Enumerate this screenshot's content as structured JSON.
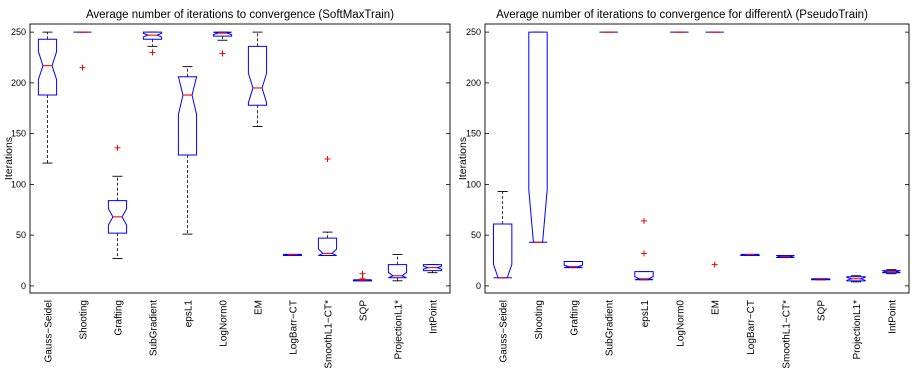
{
  "chart_data": [
    {
      "type": "box",
      "title": "Average number of iterations to convergence (SoftMaxTrain)",
      "xlabel": "",
      "ylabel": "Iterations",
      "ylim": [
        -7,
        258
      ],
      "yticks": [
        0,
        50,
        100,
        150,
        200,
        250
      ],
      "grid": false,
      "notched": true,
      "colors": {
        "box": "#0000ff",
        "median": "#ff0000",
        "whisker": "#000000",
        "outlier": "#ff0000"
      },
      "categories": [
        "Gauss−Seidel",
        "Shooting",
        "Grafting",
        "SubGradient",
        "epsL1",
        "LogNorm0",
        "EM",
        "LogBarr−CT",
        "SmoothL1−CT*",
        "SQP",
        "ProjectionL1*",
        "IntPoint"
      ],
      "boxes": [
        {
          "q1": 188,
          "median": 217,
          "q3": 243,
          "whisker_low": 121,
          "whisker_high": 250,
          "outliers": []
        },
        {
          "q1": 250,
          "median": 250,
          "q3": 250,
          "whisker_low": 250,
          "whisker_high": 250,
          "outliers": [
            215
          ]
        },
        {
          "q1": 52,
          "median": 68,
          "q3": 84,
          "whisker_low": 27,
          "whisker_high": 108,
          "outliers": [
            136
          ]
        },
        {
          "q1": 243,
          "median": 247,
          "q3": 250,
          "whisker_low": 236,
          "whisker_high": 250,
          "outliers": [
            230
          ]
        },
        {
          "q1": 129,
          "median": 188,
          "q3": 206,
          "whisker_low": 51,
          "whisker_high": 216,
          "outliers": []
        },
        {
          "q1": 246,
          "median": 249,
          "q3": 250,
          "whisker_low": 242,
          "whisker_high": 250,
          "outliers": [
            229
          ]
        },
        {
          "q1": 178,
          "median": 195,
          "q3": 236,
          "whisker_low": 157,
          "whisker_high": 250,
          "outliers": []
        },
        {
          "q1": 30,
          "median": 31,
          "q3": 31,
          "whisker_low": 30,
          "whisker_high": 31,
          "outliers": []
        },
        {
          "q1": 30,
          "median": 32,
          "q3": 47,
          "whisker_low": 30,
          "whisker_high": 53,
          "outliers": [
            125
          ]
        },
        {
          "q1": 5,
          "median": 6,
          "q3": 6,
          "whisker_low": 5,
          "whisker_high": 6,
          "outliers": [
            12,
            7
          ]
        },
        {
          "q1": 8,
          "median": 10,
          "q3": 21,
          "whisker_low": 5,
          "whisker_high": 31,
          "outliers": []
        },
        {
          "q1": 15,
          "median": 18,
          "q3": 21,
          "whisker_low": 13,
          "whisker_high": 21,
          "outliers": []
        }
      ]
    },
    {
      "type": "box",
      "title": "Average number of iterations to convergence for differentλ (PseudoTrain)",
      "xlabel": "",
      "ylabel": "Iterations",
      "ylim": [
        -7,
        258
      ],
      "yticks": [
        0,
        50,
        100,
        150,
        200,
        250
      ],
      "grid": false,
      "notched": true,
      "colors": {
        "box": "#0000ff",
        "median": "#ff0000",
        "whisker": "#000000",
        "outlier": "#ff0000"
      },
      "categories": [
        "Gauss−Seidel",
        "Shooting",
        "Grafting",
        "SubGradient",
        "epsL1",
        "LogNorm0",
        "EM",
        "LogBarr−CT",
        "SmoothL1−CT*",
        "SQP",
        "ProjectionL1*",
        "IntPoint"
      ],
      "boxes": [
        {
          "q1": 8,
          "median": 8,
          "q3": 61,
          "whisker_low": 8,
          "whisker_high": 93,
          "outliers": []
        },
        {
          "q1": 43,
          "median": 43,
          "q3": 250,
          "whisker_low": 43,
          "whisker_high": 250,
          "outliers": []
        },
        {
          "q1": 18,
          "median": 19,
          "q3": 24,
          "whisker_low": 18,
          "whisker_high": 24,
          "outliers": []
        },
        {
          "q1": 250,
          "median": 250,
          "q3": 250,
          "whisker_low": 250,
          "whisker_high": 250,
          "outliers": []
        },
        {
          "q1": 6,
          "median": 7,
          "q3": 14,
          "whisker_low": 6,
          "whisker_high": 14,
          "outliers": [
            64,
            32
          ]
        },
        {
          "q1": 250,
          "median": 250,
          "q3": 250,
          "whisker_low": 250,
          "whisker_high": 250,
          "outliers": []
        },
        {
          "q1": 250,
          "median": 250,
          "q3": 250,
          "whisker_low": 250,
          "whisker_high": 250,
          "outliers": [
            21
          ]
        },
        {
          "q1": 30,
          "median": 31,
          "q3": 31,
          "whisker_low": 30,
          "whisker_high": 31,
          "outliers": []
        },
        {
          "q1": 28,
          "median": 29,
          "q3": 30,
          "whisker_low": 28,
          "whisker_high": 30,
          "outliers": []
        },
        {
          "q1": 6,
          "median": 7,
          "q3": 7,
          "whisker_low": 6,
          "whisker_high": 7,
          "outliers": []
        },
        {
          "q1": 5,
          "median": 7,
          "q3": 9,
          "whisker_low": 4,
          "whisker_high": 10,
          "outliers": []
        },
        {
          "q1": 13,
          "median": 14,
          "q3": 15,
          "whisker_low": 12,
          "whisker_high": 16,
          "outliers": []
        }
      ]
    }
  ]
}
